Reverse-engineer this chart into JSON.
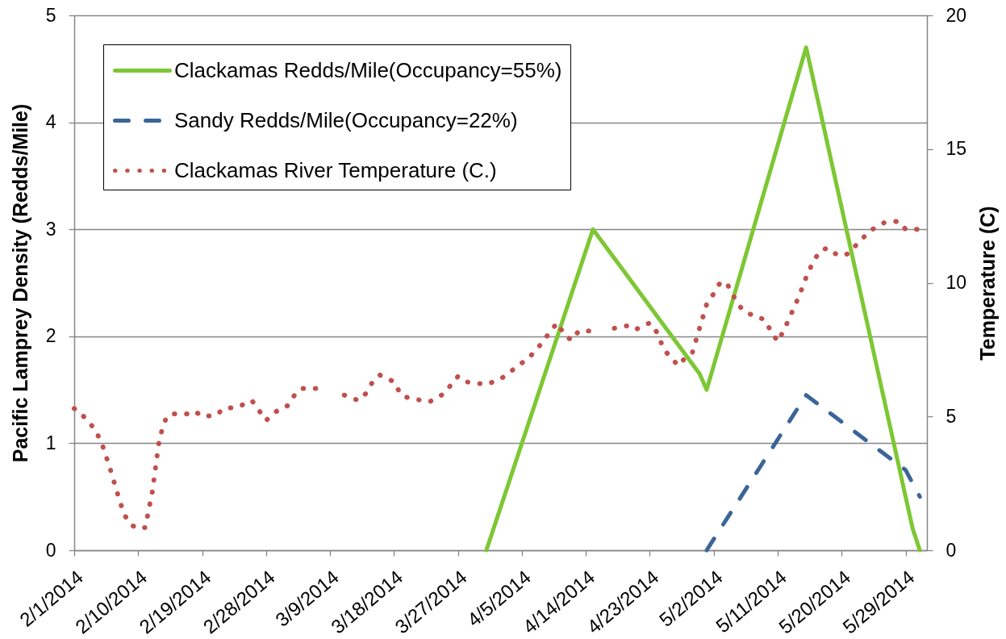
{
  "chart_data": {
    "type": "line",
    "ylabel": "Pacific Lamprey Density (Redds/Mile)",
    "y2label": "Temperature (C)",
    "xlim": [
      "2014-02-01",
      "2014-06-01"
    ],
    "xticks": [
      {
        "value": "2014-02-01",
        "label": "2/1/2014"
      },
      {
        "value": "2014-02-10",
        "label": "2/10/2014"
      },
      {
        "value": "2014-02-19",
        "label": "2/19/2014"
      },
      {
        "value": "2014-02-28",
        "label": "2/28/2014"
      },
      {
        "value": "2014-03-09",
        "label": "3/9/2014"
      },
      {
        "value": "2014-03-18",
        "label": "3/18/2014"
      },
      {
        "value": "2014-03-27",
        "label": "3/27/2014"
      },
      {
        "value": "2014-04-05",
        "label": "4/5/2014"
      },
      {
        "value": "2014-04-14",
        "label": "4/14/2014"
      },
      {
        "value": "2014-04-23",
        "label": "4/23/2014"
      },
      {
        "value": "2014-05-02",
        "label": "5/2/2014"
      },
      {
        "value": "2014-05-11",
        "label": "5/11/2014"
      },
      {
        "value": "2014-05-20",
        "label": "5/20/2014"
      },
      {
        "value": "2014-05-29",
        "label": "5/29/2014"
      }
    ],
    "ylim": [
      0,
      5
    ],
    "yticks": [
      0,
      1,
      2,
      3,
      4,
      5
    ],
    "y2lim": [
      0,
      20
    ],
    "y2ticks": [
      0,
      5,
      10,
      15,
      20
    ],
    "grid": "y",
    "legend": "top left",
    "series": [
      {
        "name": "Clackamas Redds/Mile(Occupancy=55%)",
        "color": "#7dc734",
        "line_style": "solid",
        "x": [
          "2014-03-31",
          "2014-04-15",
          "2014-04-30",
          "2014-05-01",
          "2014-05-15",
          "2014-05-30",
          "2014-05-31"
        ],
        "values": [
          0,
          3.0,
          1.65,
          1.5,
          4.7,
          0.2,
          0
        ]
      },
      {
        "name": "Sandy Redds/Mile(Occupancy=22%)",
        "color": "#3b6599",
        "line_style": "dashed",
        "x": [
          "2014-05-01",
          "2014-05-15",
          "2014-05-29",
          "2014-05-31"
        ],
        "values": [
          0,
          1.45,
          0.75,
          0.5
        ]
      },
      {
        "name": "Clackamas River Temperature (C.)",
        "color": "#c0504d",
        "line_style": "dotted",
        "axis": "y2",
        "x": [
          "2014-02-01",
          "2014-02-02",
          "2014-02-03",
          "2014-02-04",
          "2014-02-05",
          "2014-02-06",
          "2014-02-07",
          "2014-02-08",
          "2014-02-09",
          "2014-02-10",
          "2014-02-11",
          "2014-02-12",
          "2014-02-13",
          "2014-02-14",
          "2014-02-15",
          "2014-02-17",
          "2014-02-18",
          "2014-02-19",
          "2014-02-21",
          "2014-02-22",
          "2014-02-24",
          "2014-02-26",
          "2014-02-28",
          "2014-03-01",
          "2014-03-02",
          "2014-03-03",
          "2014-03-04",
          "2014-03-05",
          "2014-03-08",
          "2014-03-09",
          "2014-03-10",
          "2014-03-11",
          "2014-03-13",
          "2014-03-14",
          "2014-03-15",
          "2014-03-16",
          "2014-03-18",
          "2014-03-19",
          "2014-03-20",
          "2014-03-23",
          "2014-03-25",
          "2014-03-27",
          "2014-03-28",
          "2014-03-31",
          "2014-04-02",
          "2014-04-04",
          "2014-04-06",
          "2014-04-08",
          "2014-04-09",
          "2014-04-10",
          "2014-04-11",
          "2014-04-12",
          "2014-04-13",
          "2014-04-16",
          "2014-04-17",
          "2014-04-18",
          "2014-04-20",
          "2014-04-21",
          "2014-04-23",
          "2014-04-24",
          "2014-04-25",
          "2014-04-27",
          "2014-04-28",
          "2014-04-29",
          "2014-04-30",
          "2014-05-01",
          "2014-05-02",
          "2014-05-03",
          "2014-05-04",
          "2014-05-05",
          "2014-05-06",
          "2014-05-08",
          "2014-05-09",
          "2014-05-11",
          "2014-05-12",
          "2014-05-13",
          "2014-05-14",
          "2014-05-15",
          "2014-05-16",
          "2014-05-17",
          "2014-05-18",
          "2014-05-19",
          "2014-05-20",
          "2014-05-21",
          "2014-05-22",
          "2014-05-24",
          "2014-05-26",
          "2014-05-28",
          "2014-05-29",
          "2014-05-31"
        ],
        "values": [
          5.3,
          5.1,
          4.8,
          4.5,
          3.9,
          3.1,
          2.2,
          1.35,
          0.95,
          0.8,
          0.85,
          2.2,
          4.2,
          5.0,
          5.1,
          5.1,
          5.2,
          5.0,
          5.05,
          5.3,
          5.35,
          5.6,
          4.85,
          5.1,
          5.3,
          5.4,
          5.8,
          6.05,
          6.05,
          null,
          null,
          5.8,
          5.6,
          5.85,
          6.3,
          6.55,
          6.3,
          5.8,
          5.7,
          5.55,
          5.85,
          6.5,
          6.3,
          6.2,
          6.4,
          6.8,
          7.2,
          7.8,
          8.2,
          8.5,
          8.05,
          7.85,
          8.2,
          8.2,
          null,
          8.3,
          8.4,
          8.25,
          8.5,
          8.15,
          7.5,
          6.9,
          7.2,
          7.4,
          8.3,
          9.2,
          9.6,
          10.05,
          9.9,
          9.4,
          9.0,
          8.7,
          8.65,
          7.8,
          8.3,
          8.9,
          9.5,
          10.2,
          10.8,
          11.2,
          11.3,
          11.1,
          11.0,
          11.1,
          11.4,
          11.95,
          12.25,
          12.3,
          12.0,
          12.0
        ]
      }
    ]
  }
}
